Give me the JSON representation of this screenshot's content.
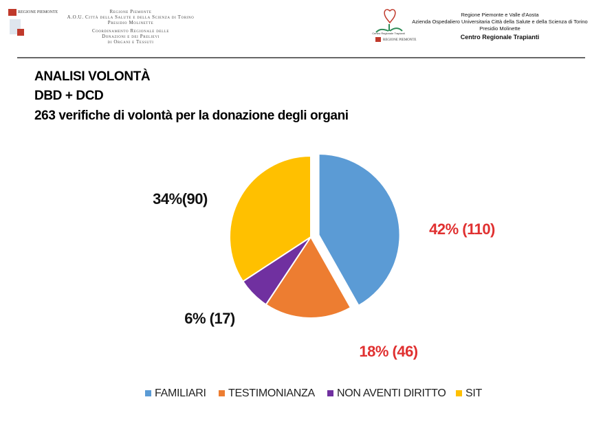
{
  "header": {
    "left": {
      "logo_text": "REGIONE PIEMONTE",
      "lines": [
        "Regione Piemonte",
        "A.O.U. Città della Salute e della Scienza di Torino",
        "Presidio Molinette",
        "Coordinamento Regionale delle",
        "Donazioni e dei Prelievi",
        "di Organi e Tessuti"
      ]
    },
    "right": {
      "logo_caption": "Centro Regionale Trapianti",
      "logo_text": "REGIONE PIEMONTE",
      "lines": [
        "Regione Piemonte e Valle d'Aosta",
        "Azienda Ospedaliero Universitaria Città della Salute e della Scienza di Torino",
        "Presidio Molinette",
        "Centro Regionale Trapianti"
      ]
    }
  },
  "chart_data": {
    "type": "pie",
    "title": "ANALISI VOLONTÀ",
    "subtitles": [
      "DBD + DCD",
      "263 verifiche di volontà per la donazione degli organi"
    ],
    "categories": [
      "FAMILIARI",
      "TESTIMONIANZA",
      "NON AVENTI DIRITTO",
      "SIT"
    ],
    "values": [
      110,
      46,
      17,
      90
    ],
    "value_labels": [
      "42% (110)",
      "18% (46)",
      "6% (17)",
      "34%(90)"
    ],
    "colors": [
      "#5b9bd5",
      "#ed7d31",
      "#7030a0",
      "#ffc000"
    ],
    "legend": "bottom"
  }
}
